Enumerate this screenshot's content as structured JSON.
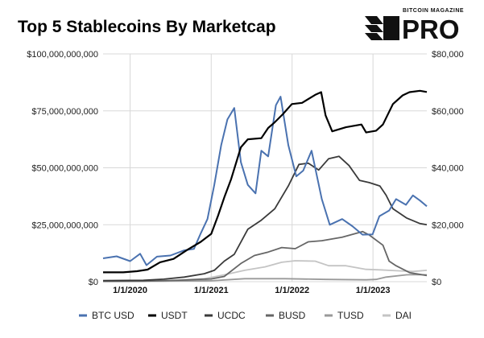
{
  "brand": {
    "top": "BITCOIN MAGAZINE",
    "main": "PRO"
  },
  "chart_data": {
    "type": "line",
    "title": "Top 5 Stablecoins By Marketcap",
    "x_range": [
      "2019-09-01",
      "2023-09-01"
    ],
    "x_ticks": [
      "1/1/2020",
      "1/1/2021",
      "1/1/2022",
      "1/1/2023"
    ],
    "ylim_left": [
      0,
      100000000000
    ],
    "ylim_right": [
      0,
      80000
    ],
    "y_ticks_left": [
      "$0",
      "$25,000,000,000",
      "$50,000,000,000",
      "$75,000,000,000",
      "$100,000,000,000"
    ],
    "y_ticks_right": [
      "$0",
      "$20,000",
      "$40,000",
      "$60,000",
      "$80,000"
    ],
    "grid": true,
    "legend_position": "bottom",
    "series": [
      {
        "name": "BTC USD",
        "axis": "right",
        "color": "#4a72b0",
        "x": [
          "2019-09-01",
          "2019-11-01",
          "2020-01-01",
          "2020-02-15",
          "2020-03-15",
          "2020-05-01",
          "2020-07-01",
          "2020-09-01",
          "2020-10-15",
          "2020-11-15",
          "2020-12-15",
          "2021-01-15",
          "2021-02-15",
          "2021-03-15",
          "2021-04-15",
          "2021-05-15",
          "2021-06-15",
          "2021-07-20",
          "2021-08-15",
          "2021-09-15",
          "2021-10-20",
          "2021-11-10",
          "2021-12-15",
          "2022-01-20",
          "2022-02-20",
          "2022-03-30",
          "2022-05-15",
          "2022-06-20",
          "2022-08-15",
          "2022-09-30",
          "2022-11-15",
          "2022-12-30",
          "2023-01-30",
          "2023-03-15",
          "2023-04-15",
          "2023-05-30",
          "2023-06-30",
          "2023-08-01",
          "2023-09-01"
        ],
        "values": [
          8200,
          8900,
          7200,
          9800,
          5800,
          8800,
          9200,
          11000,
          11500,
          17000,
          22000,
          34000,
          48000,
          57000,
          61000,
          42000,
          34000,
          31000,
          46000,
          44000,
          62000,
          65000,
          48000,
          37000,
          39000,
          46000,
          29000,
          20000,
          22000,
          19500,
          16500,
          16600,
          23000,
          25000,
          29000,
          27000,
          30300,
          28500,
          26500
        ]
      },
      {
        "name": "USDT",
        "axis": "left",
        "color": "#000000",
        "x": [
          "2019-09-01",
          "2019-12-01",
          "2020-02-01",
          "2020-03-20",
          "2020-05-15",
          "2020-07-15",
          "2020-09-15",
          "2020-11-15",
          "2021-01-01",
          "2021-02-01",
          "2021-03-01",
          "2021-04-01",
          "2021-05-15",
          "2021-06-15",
          "2021-08-15",
          "2021-09-15",
          "2021-10-15",
          "2021-11-20",
          "2021-12-31",
          "2022-02-15",
          "2022-04-15",
          "2022-05-12",
          "2022-06-01",
          "2022-07-01",
          "2022-09-01",
          "2022-11-10",
          "2022-12-01",
          "2023-01-15",
          "2023-02-15",
          "2023-04-01",
          "2023-05-15",
          "2023-06-15",
          "2023-08-01",
          "2023-09-01"
        ],
        "values": [
          4100000000,
          4100000000,
          4600000000,
          5300000000,
          8500000000,
          10000000000,
          14000000000,
          17500000000,
          21000000000,
          29000000000,
          37000000000,
          45000000000,
          59000000000,
          62500000000,
          63000000000,
          67500000000,
          70000000000,
          73500000000,
          78000000000,
          78500000000,
          82000000000,
          83200000000,
          73000000000,
          66000000000,
          67800000000,
          69000000000,
          65500000000,
          66300000000,
          69000000000,
          78000000000,
          81800000000,
          83200000000,
          83800000000,
          83300000000
        ]
      },
      {
        "name": "UCDC",
        "axis": "left",
        "color": "#3a3a3a",
        "x": [
          "2019-09-01",
          "2020-03-01",
          "2020-06-01",
          "2020-09-01",
          "2020-12-01",
          "2021-01-15",
          "2021-03-01",
          "2021-04-15",
          "2021-06-15",
          "2021-08-15",
          "2021-10-15",
          "2021-12-15",
          "2022-02-01",
          "2022-03-15",
          "2022-05-01",
          "2022-06-15",
          "2022-08-01",
          "2022-09-15",
          "2022-11-01",
          "2022-12-15",
          "2023-02-01",
          "2023-03-01",
          "2023-04-01",
          "2023-06-01",
          "2023-08-01",
          "2023-09-01"
        ],
        "values": [
          450000000,
          600000000,
          1100000000,
          2000000000,
          3500000000,
          5000000000,
          9000000000,
          12000000000,
          23000000000,
          27000000000,
          32000000000,
          42000000000,
          51500000000,
          52000000000,
          49000000000,
          54000000000,
          55000000000,
          51000000000,
          44500000000,
          43500000000,
          42000000000,
          38000000000,
          32000000000,
          28000000000,
          25500000000,
          25000000000
        ]
      },
      {
        "name": "BUSD",
        "axis": "left",
        "color": "#666666",
        "x": [
          "2019-09-01",
          "2020-03-01",
          "2020-09-01",
          "2021-01-01",
          "2021-03-01",
          "2021-05-15",
          "2021-07-15",
          "2021-09-15",
          "2021-11-15",
          "2022-01-15",
          "2022-03-15",
          "2022-05-15",
          "2022-08-15",
          "2022-11-15",
          "2022-12-15",
          "2023-02-15",
          "2023-03-15",
          "2023-04-15",
          "2023-06-15",
          "2023-09-01"
        ],
        "values": [
          150000000,
          200000000,
          700000000,
          1200000000,
          2300000000,
          8000000000,
          11500000000,
          13000000000,
          15000000000,
          14500000000,
          17500000000,
          18000000000,
          19500000000,
          22000000000,
          20500000000,
          16000000000,
          9000000000,
          7000000000,
          4000000000,
          2700000000
        ]
      },
      {
        "name": "TUSD",
        "axis": "left",
        "color": "#999999",
        "x": [
          "2019-09-01",
          "2020-06-01",
          "2021-01-01",
          "2021-06-01",
          "2021-12-01",
          "2022-06-01",
          "2022-12-01",
          "2023-01-15",
          "2023-03-01",
          "2023-06-01",
          "2023-07-01",
          "2023-09-01"
        ],
        "values": [
          200000000,
          300000000,
          400000000,
          1300000000,
          1300000000,
          1000000000,
          800000000,
          1000000000,
          2000000000,
          3000000000,
          3100000000,
          3000000000
        ]
      },
      {
        "name": "DAI",
        "axis": "left",
        "color": "#c4c4c4",
        "x": [
          "2019-09-01",
          "2020-06-01",
          "2020-09-01",
          "2020-12-01",
          "2021-03-01",
          "2021-06-01",
          "2021-09-01",
          "2021-11-15",
          "2022-01-15",
          "2022-04-15",
          "2022-06-15",
          "2022-09-01",
          "2022-12-01",
          "2023-02-01",
          "2023-04-15",
          "2023-07-01",
          "2023-09-01"
        ],
        "values": [
          120000000,
          150000000,
          900000000,
          1300000000,
          3000000000,
          5000000000,
          6500000000,
          8500000000,
          9200000000,
          9000000000,
          7000000000,
          7000000000,
          5400000000,
          5200000000,
          4800000000,
          4500000000,
          5000000000
        ]
      }
    ]
  }
}
